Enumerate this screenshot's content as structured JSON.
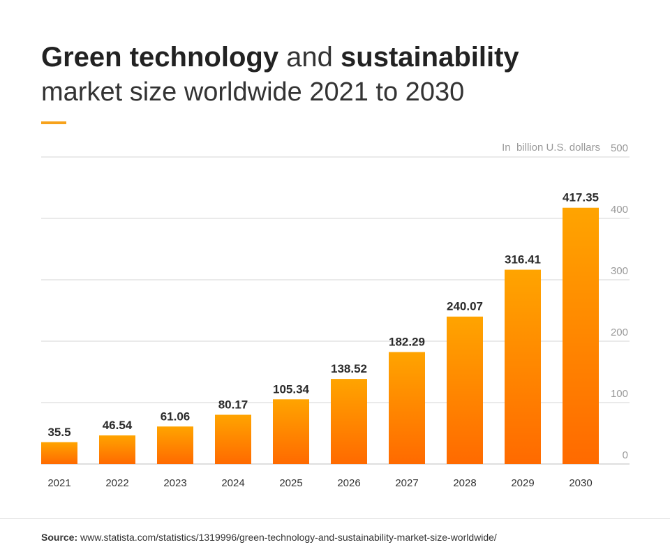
{
  "title": {
    "part1_bold": "Green technology",
    "part2": " and ",
    "part3_bold": "sustainability",
    "line2": "market size worldwide 2021 to 2030"
  },
  "colors": {
    "accent": "#f7a21b",
    "bar_top": "#ffa400",
    "bar_bottom": "#ff6a00",
    "grid": "#d6d6d6",
    "axis_text": "#9a9a9a",
    "label_text": "#2b2b2b"
  },
  "source": {
    "label": "Source:",
    "text": " www.statista.com/statistics/1319996/green-technology-and-sustainability-market-size-worldwide/"
  },
  "chart_data": {
    "type": "bar",
    "title": "Green technology and sustainability market size worldwide 2021 to 2030",
    "unit_label": "In  billion U.S. dollars",
    "categories": [
      "2021",
      "2022",
      "2023",
      "2024",
      "2025",
      "2026",
      "2027",
      "2028",
      "2029",
      "2030"
    ],
    "values": [
      35.5,
      46.54,
      61.06,
      80.17,
      105.34,
      138.52,
      182.29,
      240.07,
      316.41,
      417.35
    ],
    "value_labels": [
      "35.5",
      "46.54",
      "61.06",
      "80.17",
      "105.34",
      "138.52",
      "182.29",
      "240.07",
      "316.41",
      "417.35"
    ],
    "yticks": [
      "0",
      "100",
      "200",
      "300",
      "400",
      "500"
    ],
    "ylim": [
      0,
      500
    ],
    "grid": true,
    "y_axis_side": "right"
  }
}
